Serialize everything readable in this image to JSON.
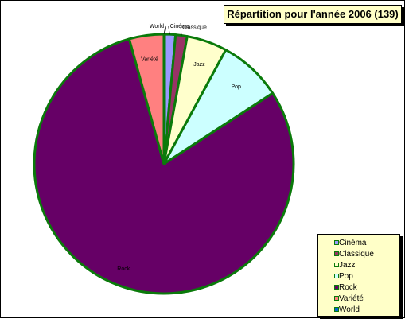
{
  "chart_data": {
    "type": "pie",
    "title": "Répartition pour l'année 2006 (139)",
    "categories": [
      "Cinéma",
      "Classique",
      "Jazz",
      "Pop",
      "Rock",
      "Variété",
      "World"
    ],
    "values": [
      2,
      2,
      7,
      11,
      111,
      6,
      0
    ],
    "colors": [
      "#9999ff",
      "#993366",
      "#ffffcc",
      "#ccffff",
      "#660066",
      "#ff8080",
      "#0066cc"
    ],
    "slice_border_color": "#0a7a0a",
    "legend_placement": "bottom-right",
    "grid": false
  }
}
